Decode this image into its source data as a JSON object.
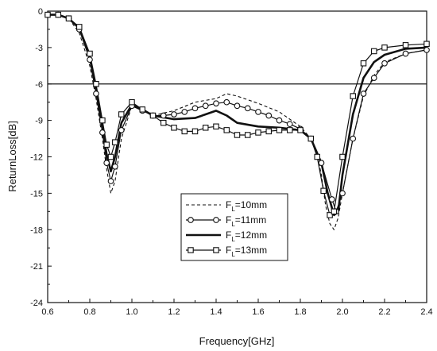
{
  "chart_data": {
    "type": "line",
    "xlabel": "Frequency[GHz]",
    "ylabel": "ReturnLoss[dB]",
    "xlim": [
      0.6,
      2.4
    ],
    "ylim": [
      -24,
      0
    ],
    "xticks": [
      "0.6",
      "0.8",
      "1.0",
      "1.2",
      "1.4",
      "1.6",
      "1.8",
      "2.0",
      "2.2",
      "2.4"
    ],
    "yticks": [
      "0",
      "-3",
      "-6",
      "-9",
      "-12",
      "-15",
      "-18",
      "-21",
      "-24"
    ],
    "reference_line": -6,
    "grid": false,
    "legend_position": "bottom-center",
    "series": [
      {
        "name": "F_L=10mm",
        "style": "dashed",
        "x": [
          0.6,
          0.65,
          0.7,
          0.75,
          0.8,
          0.83,
          0.86,
          0.88,
          0.9,
          0.92,
          0.95,
          1.0,
          1.05,
          1.1,
          1.2,
          1.3,
          1.4,
          1.45,
          1.5,
          1.6,
          1.7,
          1.8,
          1.85,
          1.88,
          1.9,
          1.92,
          1.94,
          1.96,
          1.98,
          2.0,
          2.05,
          2.1,
          2.15,
          2.2,
          2.3,
          2.4
        ],
        "y": [
          -0.3,
          -0.3,
          -0.6,
          -1.8,
          -4.5,
          -7.2,
          -10.5,
          -13.0,
          -15.0,
          -14.0,
          -10.5,
          -7.8,
          -8.2,
          -8.6,
          -8.2,
          -7.5,
          -7.2,
          -6.8,
          -7.0,
          -7.6,
          -8.3,
          -9.5,
          -10.5,
          -11.8,
          -13.5,
          -16.0,
          -17.5,
          -18.0,
          -17.0,
          -15.0,
          -10.5,
          -7.0,
          -5.3,
          -4.2,
          -3.5,
          -3.2
        ]
      },
      {
        "name": "F_L=11mm",
        "style": "circle",
        "x": [
          0.6,
          0.65,
          0.7,
          0.75,
          0.8,
          0.83,
          0.86,
          0.88,
          0.9,
          0.92,
          0.95,
          1.0,
          1.05,
          1.1,
          1.15,
          1.2,
          1.25,
          1.3,
          1.35,
          1.4,
          1.45,
          1.5,
          1.55,
          1.6,
          1.65,
          1.7,
          1.75,
          1.8,
          1.85,
          1.9,
          1.95,
          1.97,
          2.0,
          2.05,
          2.1,
          2.15,
          2.2,
          2.3,
          2.4
        ],
        "y": [
          -0.3,
          -0.3,
          -0.6,
          -1.5,
          -4.0,
          -6.8,
          -10.0,
          -12.5,
          -14.0,
          -12.8,
          -9.8,
          -7.8,
          -8.2,
          -8.6,
          -8.6,
          -8.5,
          -8.3,
          -8.0,
          -7.8,
          -7.6,
          -7.5,
          -7.8,
          -8.0,
          -8.3,
          -8.6,
          -9.0,
          -9.3,
          -9.7,
          -10.5,
          -12.5,
          -15.5,
          -16.5,
          -15.0,
          -10.5,
          -6.8,
          -5.5,
          -4.3,
          -3.5,
          -3.2
        ]
      },
      {
        "name": "F_L=12mm",
        "style": "solid",
        "x": [
          0.6,
          0.65,
          0.7,
          0.75,
          0.8,
          0.83,
          0.86,
          0.88,
          0.9,
          0.92,
          0.95,
          1.0,
          1.05,
          1.1,
          1.2,
          1.3,
          1.35,
          1.4,
          1.45,
          1.5,
          1.6,
          1.7,
          1.8,
          1.85,
          1.9,
          1.93,
          1.96,
          1.98,
          2.0,
          2.05,
          2.1,
          2.15,
          2.2,
          2.3,
          2.4
        ],
        "y": [
          -0.3,
          -0.3,
          -0.6,
          -1.4,
          -3.8,
          -6.5,
          -9.5,
          -11.8,
          -13.2,
          -12.0,
          -9.2,
          -7.7,
          -8.1,
          -8.6,
          -8.9,
          -8.8,
          -8.5,
          -8.2,
          -8.6,
          -9.2,
          -9.5,
          -9.6,
          -9.8,
          -10.5,
          -12.5,
          -15.0,
          -16.8,
          -16.5,
          -13.5,
          -8.5,
          -5.5,
          -4.2,
          -3.6,
          -3.1,
          -3.0
        ]
      },
      {
        "name": "F_L=13mm",
        "style": "square",
        "x": [
          0.6,
          0.65,
          0.7,
          0.75,
          0.8,
          0.83,
          0.86,
          0.88,
          0.9,
          0.92,
          0.95,
          1.0,
          1.05,
          1.1,
          1.15,
          1.2,
          1.25,
          1.3,
          1.35,
          1.4,
          1.45,
          1.5,
          1.55,
          1.6,
          1.65,
          1.7,
          1.75,
          1.8,
          1.85,
          1.88,
          1.91,
          1.94,
          1.96,
          2.0,
          2.05,
          2.1,
          2.15,
          2.2,
          2.3,
          2.4
        ],
        "y": [
          -0.3,
          -0.3,
          -0.6,
          -1.3,
          -3.5,
          -6.0,
          -9.0,
          -11.0,
          -12.0,
          -10.8,
          -8.5,
          -7.5,
          -8.1,
          -8.6,
          -9.2,
          -9.6,
          -9.9,
          -9.9,
          -9.6,
          -9.5,
          -9.8,
          -10.2,
          -10.2,
          -10.0,
          -9.9,
          -9.8,
          -9.8,
          -9.8,
          -10.5,
          -12.0,
          -14.8,
          -16.8,
          -16.5,
          -12.0,
          -7.0,
          -4.3,
          -3.3,
          -3.0,
          -2.8,
          -2.7
        ]
      }
    ]
  }
}
